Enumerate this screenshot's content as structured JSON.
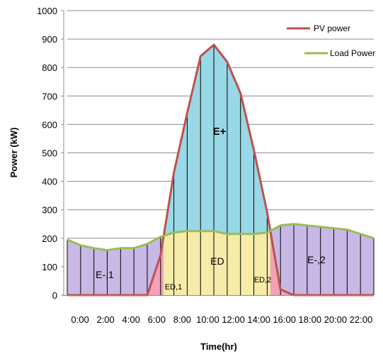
{
  "chart_data": {
    "type": "area",
    "title": "",
    "xlabel": "Time(hr)",
    "ylabel": "Power (kW)",
    "ylim": [
      0,
      1000
    ],
    "yticks": [
      0,
      100,
      200,
      300,
      400,
      500,
      600,
      700,
      800,
      900,
      1000
    ],
    "x_tick_labels": [
      "0:00",
      "2:00",
      "4:00",
      "6:00",
      "8:00",
      "10:00",
      "12:00",
      "14:00",
      "16:00",
      "18:00",
      "20:00",
      "22:00"
    ],
    "x_hours": [
      0,
      1,
      2,
      3,
      4,
      5,
      6,
      7,
      8,
      9,
      10,
      11,
      12,
      13,
      14,
      15,
      16,
      17,
      18,
      19,
      20,
      21,
      22,
      23
    ],
    "series": [
      {
        "name": "PV power",
        "color": "#c0504d",
        "values": [
          0,
          0,
          0,
          0,
          0,
          0,
          0,
          140,
          430,
          640,
          840,
          880,
          820,
          710,
          510,
          290,
          20,
          0,
          0,
          0,
          0,
          0,
          0,
          0
        ]
      },
      {
        "name": "Load Power",
        "color": "#9bbb59",
        "values": [
          195,
          175,
          165,
          158,
          165,
          165,
          180,
          205,
          220,
          225,
          225,
          225,
          215,
          215,
          215,
          220,
          245,
          250,
          245,
          240,
          235,
          230,
          215,
          200
        ]
      }
    ],
    "grid": "horizontal",
    "legend_position": "top-right",
    "region_colors": {
      "deficit": "#c8b8e6",
      "direct": "#f6eba8",
      "surplus": "#99d8e6",
      "pv_only": "#f2a1b9"
    },
    "region_labels": [
      "E-,1",
      "ED,1",
      "ED",
      "E+",
      "ED,2",
      "E-,2"
    ]
  }
}
